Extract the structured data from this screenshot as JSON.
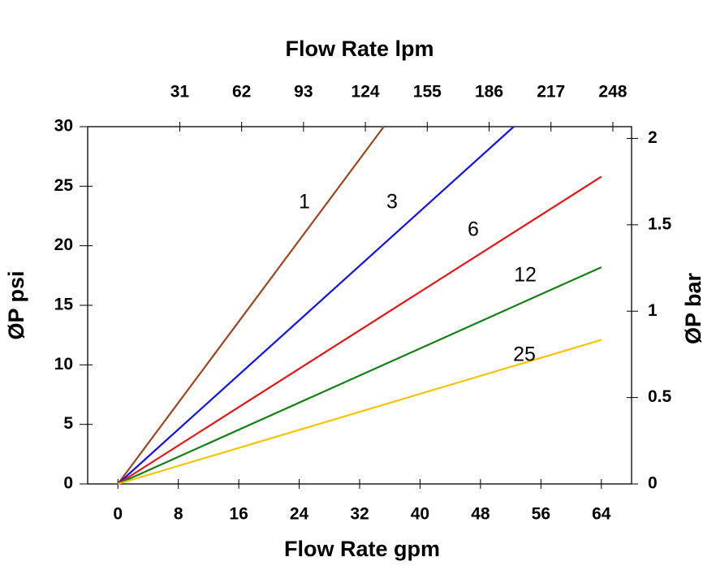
{
  "chart_data": {
    "type": "line",
    "x_label": "Flow Rate gpm",
    "x2_label": "Flow Rate lpm",
    "y_label": "ØP psi",
    "y2_label": "ØP bar",
    "xlim": [
      -4,
      68
    ],
    "xticks": [
      0,
      8,
      16,
      24,
      32,
      40,
      48,
      56,
      64
    ],
    "x2lim": [
      -15.14,
      257.38
    ],
    "x2ticks": [
      31,
      62,
      93,
      124,
      155,
      186,
      217,
      248
    ],
    "ylim": [
      0,
      30
    ],
    "yticks": [
      0,
      5,
      10,
      15,
      20,
      25,
      30
    ],
    "y2lim": [
      0,
      2.068
    ],
    "y2ticks": [
      0,
      0.5,
      1,
      1.5,
      2
    ],
    "series": [
      {
        "name": "1",
        "color": "#a0441a",
        "x": [
          0,
          35.2
        ],
        "values": [
          0,
          30
        ]
      },
      {
        "name": "3",
        "color": "#1414e6",
        "x": [
          0,
          52.4
        ],
        "values": [
          0,
          30
        ]
      },
      {
        "name": "6",
        "color": "#e61414",
        "x": [
          0,
          64
        ],
        "values": [
          0,
          25.8
        ]
      },
      {
        "name": "12",
        "color": "#128012",
        "x": [
          0,
          64
        ],
        "values": [
          0,
          18.2
        ]
      },
      {
        "name": "25",
        "color": "#f5c400",
        "x": [
          0,
          64
        ],
        "values": [
          0,
          12.1
        ]
      }
    ]
  }
}
